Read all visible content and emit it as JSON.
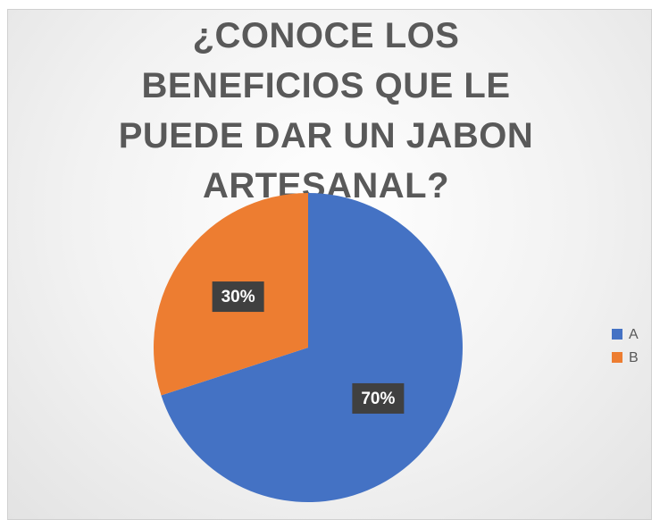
{
  "chart_data": {
    "type": "pie",
    "title": "¿CONOCE LOS BENEFICIOS QUE LE PUEDE DAR UN JABON ARTESANAL?",
    "categories": [
      "A",
      "B"
    ],
    "values": [
      70,
      30
    ],
    "value_labels": [
      "70%",
      "30%"
    ],
    "colors": [
      "#4472c4",
      "#ed7d31"
    ],
    "legend": "right"
  }
}
